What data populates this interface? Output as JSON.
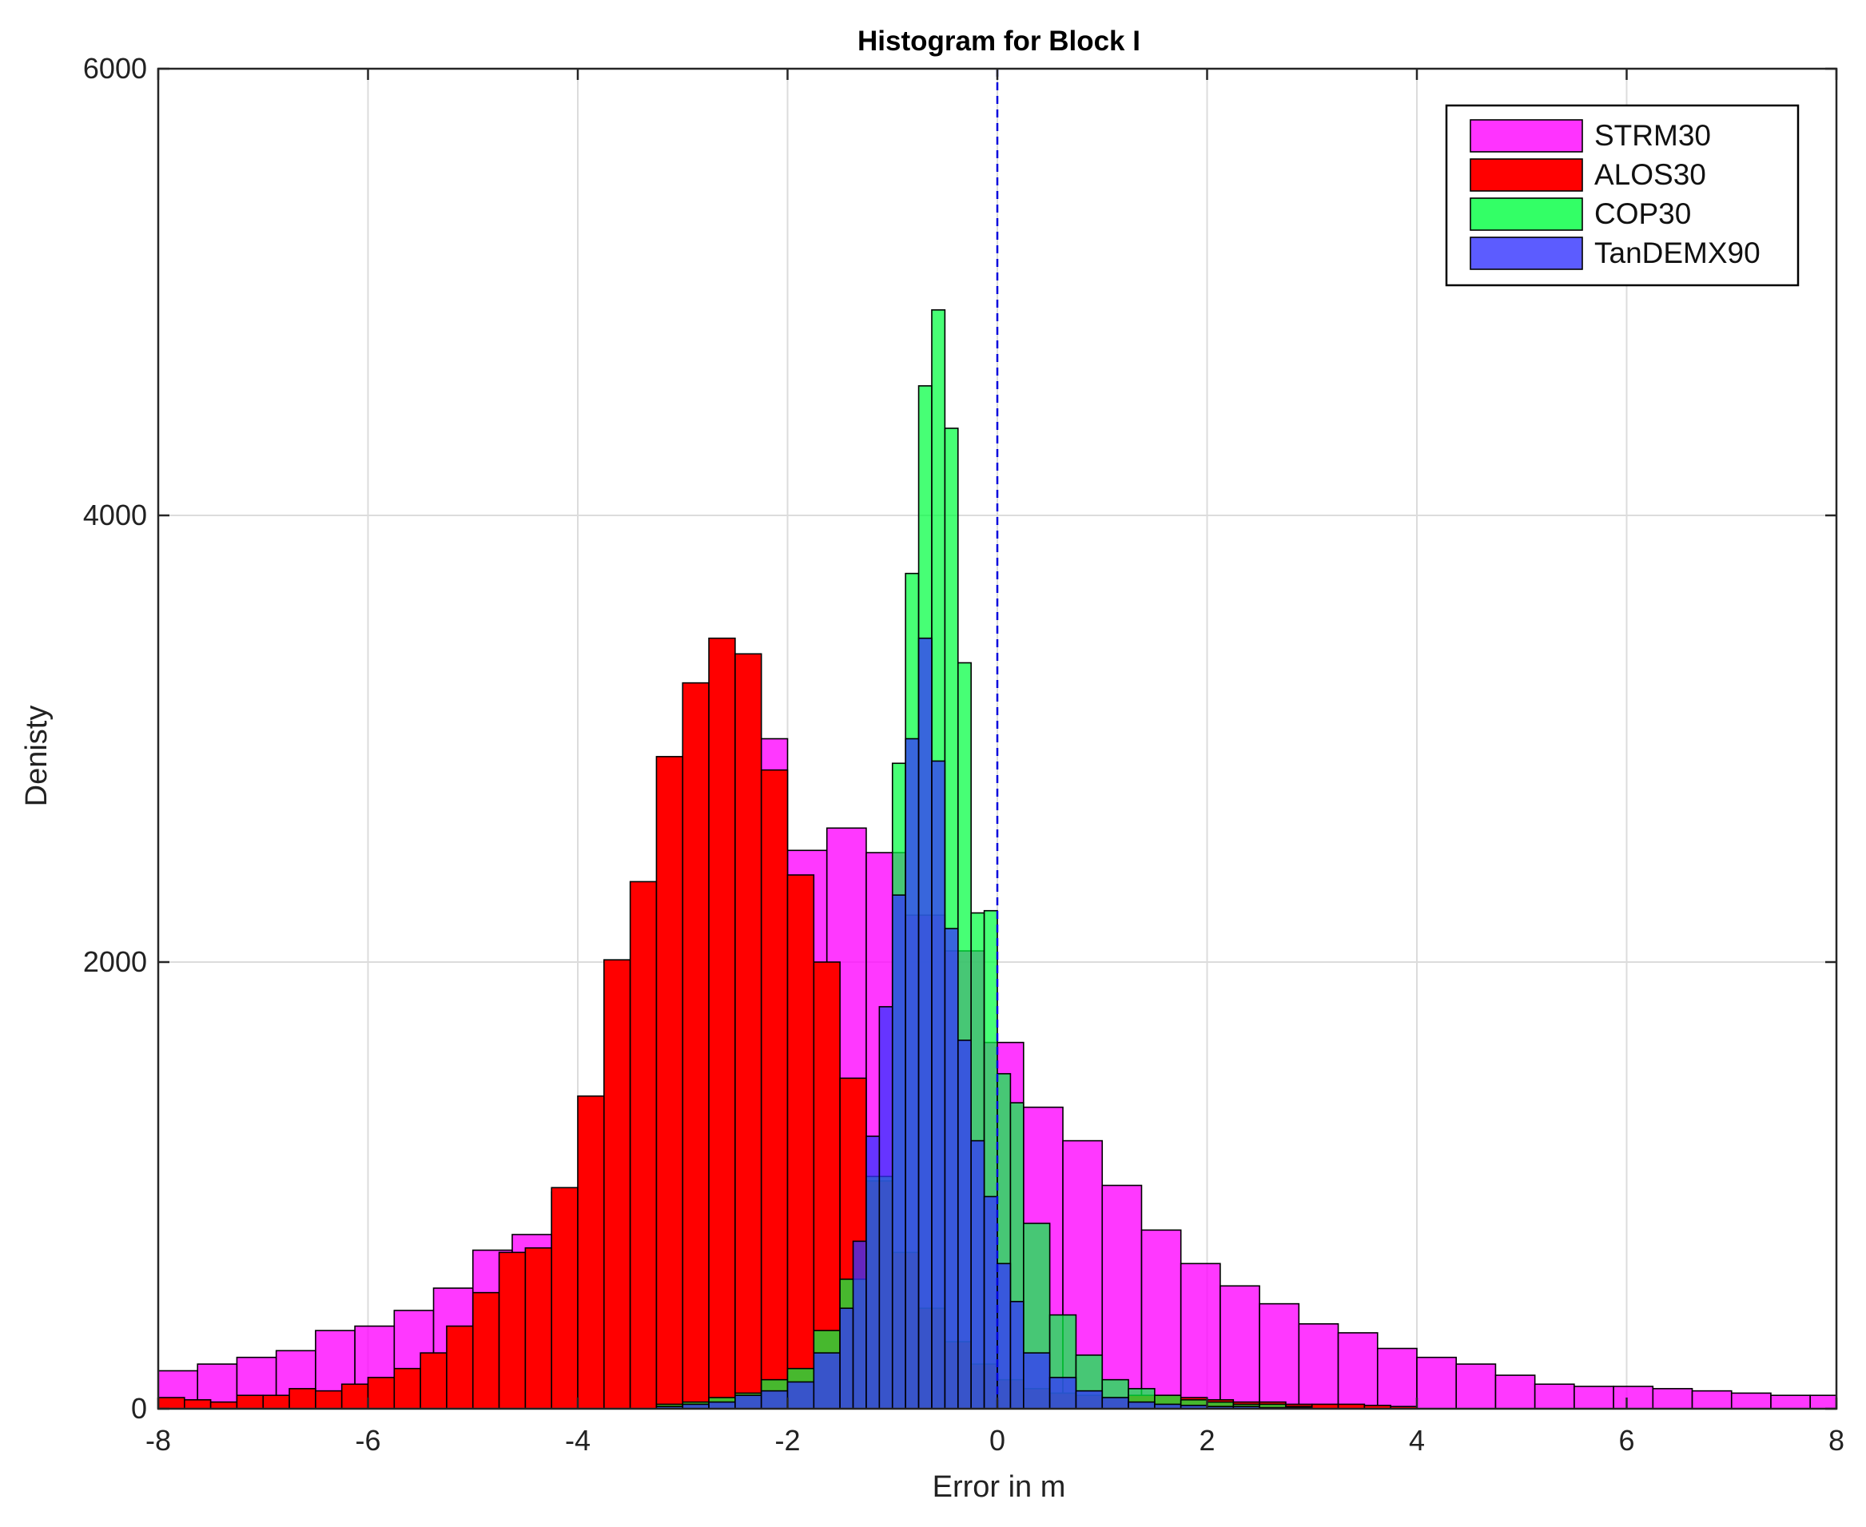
{
  "chart_data": {
    "type": "bar",
    "title": "Histogram for Block I",
    "xlabel": "Error in m",
    "ylabel": "Denisty",
    "xlim": [
      -8,
      8
    ],
    "ylim": [
      0,
      6000
    ],
    "grid": true,
    "legend_position": "top-right",
    "reference_line": {
      "x": 0,
      "style": "dashed",
      "color": "#0000dd"
    },
    "x_ticks": [
      -8,
      -6,
      -4,
      -2,
      0,
      2,
      4,
      6,
      8
    ],
    "x_tick_labels": [
      "-8",
      "-6",
      "-4",
      "-2",
      "0",
      "2",
      "4",
      "6",
      "8"
    ],
    "y_ticks": [
      0,
      2000,
      4000,
      6000
    ],
    "y_tick_labels": [
      "0",
      "2000",
      "4000",
      "6000"
    ],
    "series": [
      {
        "name": "STRM30",
        "color": "#ff00ff",
        "opacity": 0.78,
        "bin_edges": [
          -8,
          -7.625,
          -7.25,
          -6.875,
          -6.5,
          -6.125,
          -5.75,
          -5.375,
          -5,
          -4.625,
          -4.25,
          -3.875,
          -3.5,
          -3.125,
          -2.75,
          -2.375,
          -2,
          -1.625,
          -1.25,
          -0.875,
          -0.5,
          -0.125,
          0.25,
          0.625,
          1,
          1.375,
          1.75,
          2.125,
          2.5,
          2.875,
          3.25,
          3.625,
          4,
          4.375,
          4.75,
          5.125,
          5.5,
          5.875,
          6.25,
          6.625,
          7,
          7.375,
          7.75,
          8
        ],
        "counts": [
          170,
          200,
          230,
          260,
          350,
          370,
          440,
          540,
          710,
          780,
          970,
          1380,
          1990,
          2380,
          2850,
          3000,
          2500,
          2600,
          2490,
          2210,
          2050,
          1640,
          1350,
          1200,
          1000,
          800,
          650,
          550,
          470,
          380,
          340,
          270,
          230,
          200,
          150,
          110,
          100,
          100,
          90,
          80,
          70,
          60,
          60
        ]
      },
      {
        "name": "ALOS30",
        "color": "#ff0000",
        "opacity": 1.0,
        "bin_edges": [
          -8,
          -7.75,
          -7.5,
          -7.25,
          -7,
          -6.75,
          -6.5,
          -6.25,
          -6,
          -5.75,
          -5.5,
          -5.25,
          -5,
          -4.75,
          -4.5,
          -4.25,
          -4,
          -3.75,
          -3.5,
          -3.25,
          -3,
          -2.75,
          -2.5,
          -2.25,
          -2,
          -1.75,
          -1.5,
          -1.25,
          -1,
          -0.75,
          -0.5,
          -0.25,
          0,
          0.25,
          0.5,
          0.75,
          1,
          1.25,
          1.5,
          1.75,
          2,
          2.25,
          2.5,
          2.75,
          3,
          3.25,
          3.5,
          3.75,
          4
        ],
        "counts": [
          50,
          40,
          30,
          60,
          60,
          90,
          80,
          110,
          140,
          180,
          250,
          370,
          520,
          700,
          720,
          990,
          1400,
          2010,
          2360,
          2920,
          3250,
          3450,
          3380,
          2860,
          2390,
          2000,
          1480,
          1020,
          700,
          450,
          300,
          200,
          130,
          90,
          70,
          60,
          50,
          60,
          60,
          50,
          40,
          30,
          30,
          20,
          20,
          20,
          15,
          10
        ]
      },
      {
        "name": "COP30",
        "color": "#00ff40",
        "opacity": 0.72,
        "bin_edges": [
          -3.25,
          -3,
          -2.75,
          -2.5,
          -2.25,
          -2,
          -1.75,
          -1.5,
          -1.25,
          -1,
          -0.875,
          -0.75,
          -0.625,
          -0.5,
          -0.375,
          -0.25,
          -0.125,
          0,
          0.125,
          0.25,
          0.5,
          0.75,
          1,
          1.25,
          1.5,
          1.75,
          2,
          2.25,
          2.5,
          2.75,
          3
        ],
        "counts": [
          20,
          30,
          50,
          70,
          130,
          180,
          350,
          580,
          1040,
          2890,
          3740,
          4580,
          4920,
          4390,
          3340,
          2220,
          2230,
          1500,
          1370,
          830,
          420,
          240,
          130,
          90,
          60,
          40,
          30,
          20,
          20,
          10
        ]
      },
      {
        "name": "TanDEMX90",
        "color": "#3333ff",
        "opacity": 0.75,
        "bin_edges": [
          -3.25,
          -3,
          -2.75,
          -2.5,
          -2.25,
          -2,
          -1.75,
          -1.5,
          -1.375,
          -1.25,
          -1.125,
          -1,
          -0.875,
          -0.75,
          -0.625,
          -0.5,
          -0.375,
          -0.25,
          -0.125,
          0,
          0.125,
          0.25,
          0.5,
          0.75,
          1,
          1.25,
          1.5,
          1.75,
          2,
          2.25,
          2.5,
          2.75,
          3
        ],
        "counts": [
          10,
          20,
          30,
          60,
          80,
          120,
          250,
          450,
          750,
          1220,
          1800,
          2300,
          3000,
          3450,
          2900,
          2150,
          1650,
          1200,
          950,
          650,
          480,
          250,
          140,
          80,
          50,
          30,
          20,
          15,
          10,
          10,
          5,
          5
        ]
      }
    ]
  }
}
